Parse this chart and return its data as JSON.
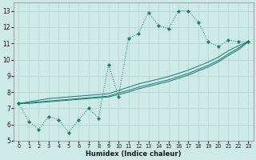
{
  "xlabel": "Humidex (Indice chaleur)",
  "bg_color": "#ceeae7",
  "grid_color": "#b8d8d5",
  "line_color": "#1a7a6e",
  "xlim": [
    -0.5,
    23.5
  ],
  "ylim": [
    5,
    13.5
  ],
  "xticks": [
    0,
    1,
    2,
    3,
    4,
    5,
    6,
    7,
    8,
    9,
    10,
    11,
    12,
    13,
    14,
    15,
    16,
    17,
    18,
    19,
    20,
    21,
    22,
    23
  ],
  "yticks": [
    5,
    6,
    7,
    8,
    9,
    10,
    11,
    12,
    13
  ],
  "series1_x": [
    0,
    1,
    2,
    3,
    4,
    5,
    6,
    7,
    8,
    9,
    10,
    11,
    12,
    13,
    14,
    15,
    16,
    17,
    18,
    19,
    20,
    21,
    22,
    23
  ],
  "series1_y": [
    7.3,
    6.2,
    5.7,
    6.5,
    6.3,
    5.5,
    6.3,
    7.0,
    6.4,
    9.7,
    7.7,
    11.3,
    11.6,
    12.9,
    12.1,
    11.9,
    13.0,
    13.0,
    12.3,
    11.1,
    10.8,
    11.2,
    11.1,
    11.1
  ],
  "series2_x": [
    0,
    1,
    2,
    3,
    4,
    5,
    6,
    7,
    8,
    9,
    10,
    11,
    12,
    13,
    14,
    15,
    16,
    17,
    18,
    19,
    20,
    21,
    22,
    23
  ],
  "series2_y": [
    7.3,
    7.4,
    7.5,
    7.6,
    7.65,
    7.7,
    7.75,
    7.8,
    7.85,
    7.9,
    8.1,
    8.3,
    8.5,
    8.65,
    8.8,
    8.95,
    9.15,
    9.35,
    9.6,
    9.85,
    10.15,
    10.55,
    10.85,
    11.1
  ],
  "series3_x": [
    0,
    1,
    2,
    3,
    4,
    5,
    6,
    7,
    8,
    9,
    10,
    11,
    12,
    13,
    14,
    15,
    16,
    17,
    18,
    19,
    20,
    21,
    22,
    23
  ],
  "series3_y": [
    7.3,
    7.35,
    7.4,
    7.45,
    7.5,
    7.55,
    7.6,
    7.65,
    7.7,
    7.75,
    7.95,
    8.1,
    8.3,
    8.45,
    8.6,
    8.75,
    8.95,
    9.15,
    9.4,
    9.65,
    9.95,
    10.35,
    10.7,
    11.1
  ],
  "series4_x": [
    0,
    1,
    2,
    3,
    4,
    5,
    6,
    7,
    8,
    9,
    10,
    11,
    12,
    13,
    14,
    15,
    16,
    17,
    18,
    19,
    20,
    21,
    22,
    23
  ],
  "series4_y": [
    7.3,
    7.3,
    7.35,
    7.4,
    7.45,
    7.5,
    7.55,
    7.6,
    7.65,
    7.7,
    7.85,
    8.0,
    8.2,
    8.35,
    8.5,
    8.65,
    8.85,
    9.05,
    9.3,
    9.55,
    9.85,
    10.25,
    10.6,
    11.1
  ]
}
